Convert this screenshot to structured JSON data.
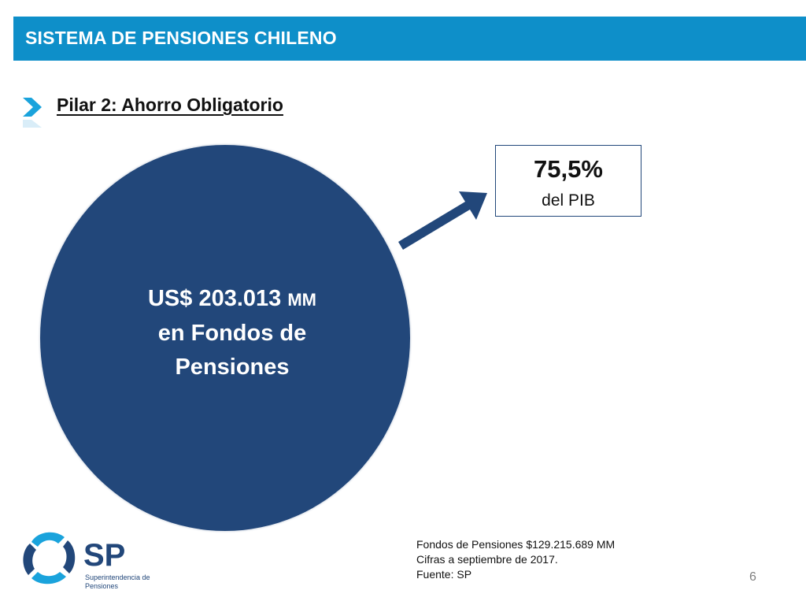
{
  "header": {
    "title": "SISTEMA DE PENSIONES CHILENO"
  },
  "section": {
    "title": "Pilar 2: Ahorro Obligatorio",
    "icon": "chevron-right-icon"
  },
  "circle": {
    "amount": "US$ 203.013",
    "unit": "MM",
    "line2": "en Fondos de",
    "line3": "Pensiones"
  },
  "pib": {
    "value": "75,5%",
    "label": "del PIB"
  },
  "logo": {
    "letters": "SP",
    "line1": "Superintendencia de",
    "line2": "Pensiones"
  },
  "notes": {
    "line1": "Fondos de Pensiones $129.215.689 MM",
    "line2": "Cifras a septiembre de 2017.",
    "line3": "Fuente: SP"
  },
  "page": {
    "number": "6"
  },
  "colors": {
    "header": "#0e8fc9",
    "navy": "#22477a",
    "chevron": "#1aa3dc"
  }
}
